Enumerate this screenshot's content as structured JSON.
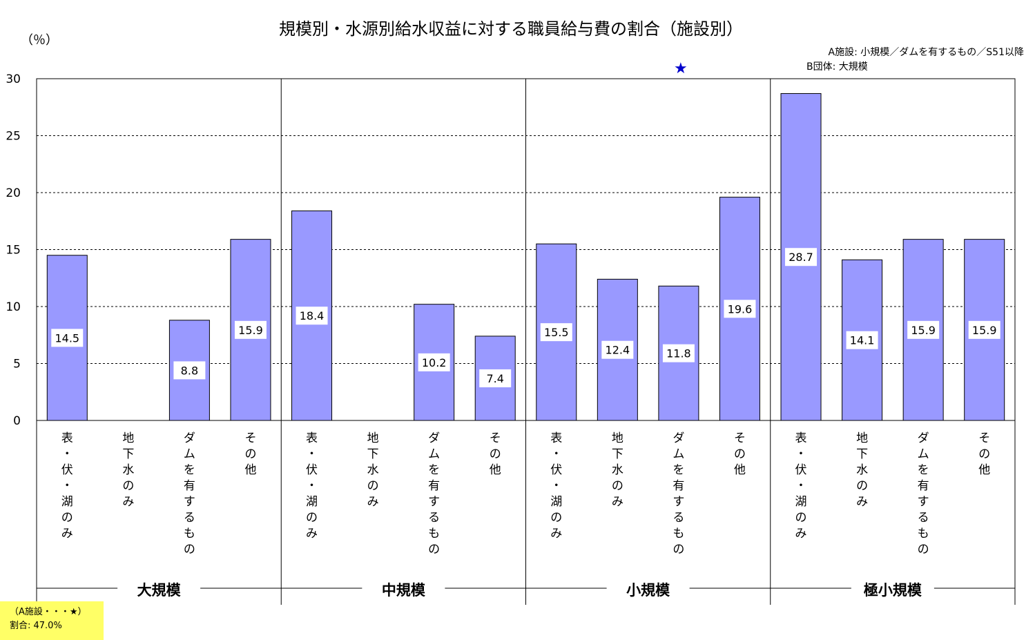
{
  "chart_data": {
    "type": "bar",
    "title": "規模別・水源別給水収益に対する職員給与費の割合（施設別）",
    "ylabel": "（％）",
    "ylim": [
      0,
      30
    ],
    "yticks": [
      0,
      5,
      10,
      15,
      20,
      25,
      30
    ],
    "grid": true,
    "groups": [
      {
        "name": "大規模",
        "bars": [
          {
            "category": "表・伏・湖のみ",
            "value": 14.5,
            "label": "14.5"
          },
          {
            "category": "地下水のみ",
            "value": null,
            "label": ""
          },
          {
            "category": "ダムを有するもの",
            "value": 8.8,
            "label": "8.8"
          },
          {
            "category": "その他",
            "value": 15.9,
            "label": "15.9"
          }
        ]
      },
      {
        "name": "中規模",
        "bars": [
          {
            "category": "表・伏・湖のみ",
            "value": 18.4,
            "label": "18.4"
          },
          {
            "category": "地下水のみ",
            "value": null,
            "label": ""
          },
          {
            "category": "ダムを有するもの",
            "value": 10.2,
            "label": "10.2"
          },
          {
            "category": "その他",
            "value": 7.4,
            "label": "7.4"
          }
        ]
      },
      {
        "name": "小規模",
        "bars": [
          {
            "category": "表・伏・湖のみ",
            "value": 15.5,
            "label": "15.5"
          },
          {
            "category": "地下水のみ",
            "value": 12.4,
            "label": "12.4"
          },
          {
            "category": "ダムを有するもの",
            "value": 11.8,
            "label": "11.8"
          },
          {
            "category": "その他",
            "value": 19.6,
            "label": "19.6"
          }
        ]
      },
      {
        "name": "極小規模",
        "bars": [
          {
            "category": "表・伏・湖のみ",
            "value": 28.7,
            "label": "28.7"
          },
          {
            "category": "地下水のみ",
            "value": 14.1,
            "label": "14.1"
          },
          {
            "category": "ダムを有するもの",
            "value": 15.9,
            "label": "15.9"
          },
          {
            "category": "その他",
            "value": 15.9,
            "label": "15.9"
          }
        ]
      }
    ],
    "marker": {
      "symbol": "★",
      "group": "小規模",
      "category": "ダムを有するもの",
      "value": 47.0
    },
    "notes": [
      "A施設: 小規模／ダムを有するもの／S51以降",
      "B団体: 大規模"
    ],
    "legend_box": {
      "line1": "（A施設・・・★）",
      "line2": "割合: 47.0%"
    },
    "colors": {
      "bar_fill": "#9999ff",
      "bar_stroke": "#000000",
      "marker": "#0000cc",
      "legend_bg": "#ffff66"
    }
  }
}
